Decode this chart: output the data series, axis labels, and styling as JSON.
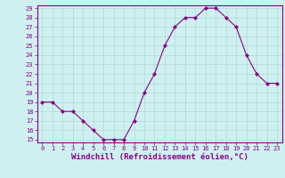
{
  "x": [
    0,
    1,
    2,
    3,
    4,
    5,
    6,
    7,
    8,
    9,
    10,
    11,
    12,
    13,
    14,
    15,
    16,
    17,
    18,
    19,
    20,
    21,
    22,
    23
  ],
  "y": [
    19,
    19,
    18,
    18,
    17,
    16,
    15,
    15,
    15,
    17,
    20,
    22,
    25,
    27,
    28,
    28,
    29,
    29,
    28,
    27,
    24,
    22,
    21,
    21
  ],
  "line_color": "#880088",
  "marker": "D",
  "marker_size": 2.0,
  "bg_color": "#cff0f0",
  "grid_color": "#b0d8d8",
  "xlabel": "Windchill (Refroidissement éolien,°C)",
  "ylim_min": 15,
  "ylim_max": 29,
  "xlim_min": 0,
  "xlim_max": 23,
  "yticks": [
    15,
    16,
    17,
    18,
    19,
    20,
    21,
    22,
    23,
    24,
    25,
    26,
    27,
    28,
    29
  ],
  "xticks": [
    0,
    1,
    2,
    3,
    4,
    5,
    6,
    7,
    8,
    9,
    10,
    11,
    12,
    13,
    14,
    15,
    16,
    17,
    18,
    19,
    20,
    21,
    22,
    23
  ],
  "tick_label_fontsize": 5.0,
  "xlabel_fontsize": 6.5,
  "tick_color": "#880088",
  "spine_color": "#880088"
}
